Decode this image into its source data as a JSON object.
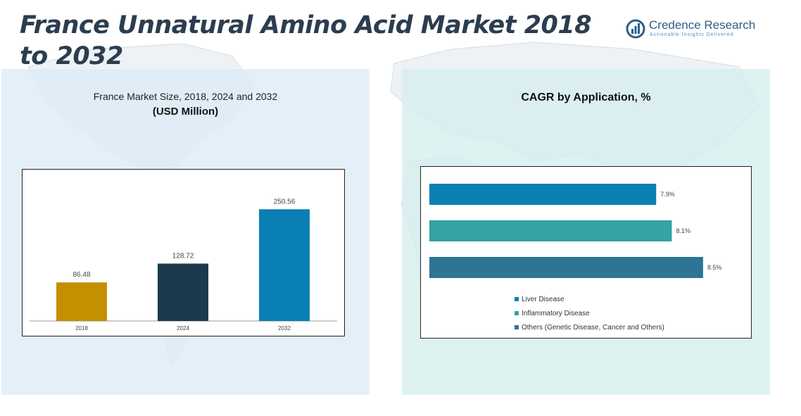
{
  "title": "France Unnatural Amino Acid Market 2018 to 2032",
  "logo": {
    "name": "Credence Research",
    "tagline": "Actionable Insights Delivered"
  },
  "left_panel": {
    "title": "France Market Size, 2018, 2024 and 2032",
    "subtitle": "(USD Million)"
  },
  "right_panel": {
    "title": "CAGR by Application, %"
  },
  "colors": {
    "title": "#2b3d4f",
    "bar_2018": "#c48f00",
    "bar_2024": "#1b3a4b",
    "bar_2032": "#0a7fb4",
    "liver": "#0a7fb4",
    "inflammatory": "#33a3a3",
    "others": "#2e7595"
  },
  "chart_data": [
    {
      "type": "bar",
      "title": "France Market Size, 2018, 2024 and 2032",
      "subtitle": "(USD Million)",
      "categories": [
        "2018",
        "2024",
        "2032"
      ],
      "values": [
        86.48,
        128.72,
        250.56
      ],
      "value_labels": [
        "86.48",
        "128.72",
        "250.56"
      ],
      "ylim": [
        0,
        300
      ],
      "grid": false,
      "legend": "none"
    },
    {
      "type": "bar",
      "orientation": "horizontal",
      "title": "CAGR by Application, %",
      "categories": [
        "Liver Disease",
        "Inflammatory Disease",
        "Others (Genetic Disease, Cancer and Others)"
      ],
      "values": [
        7.9,
        8.1,
        8.5
      ],
      "value_labels": [
        "7.9%",
        "8.1%",
        "8.5%"
      ],
      "xlim": [
        5,
        8.6
      ],
      "grid": false,
      "legend": "bottom-left"
    }
  ]
}
